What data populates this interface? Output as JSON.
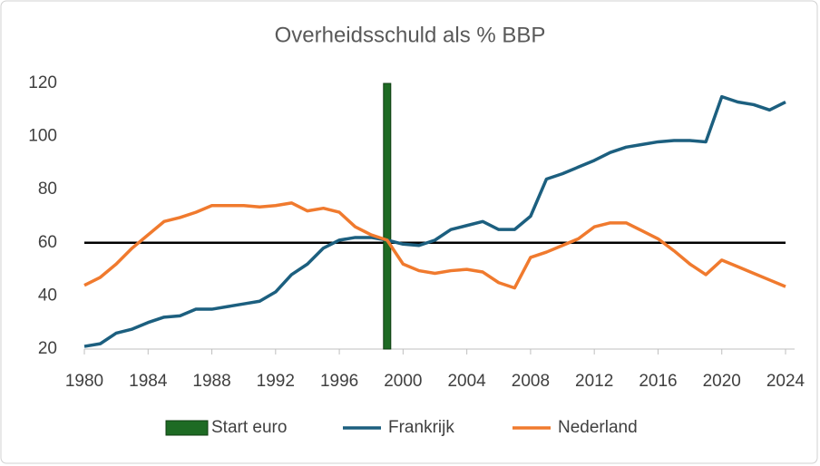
{
  "chart_data": {
    "type": "line",
    "title": "Overheidsschuld als % BBP",
    "x": [
      1980,
      1981,
      1982,
      1983,
      1984,
      1985,
      1986,
      1987,
      1988,
      1989,
      1990,
      1991,
      1992,
      1993,
      1994,
      1995,
      1996,
      1997,
      1998,
      1999,
      2000,
      2001,
      2002,
      2003,
      2004,
      2005,
      2006,
      2007,
      2008,
      2009,
      2010,
      2011,
      2012,
      2013,
      2014,
      2015,
      2016,
      2017,
      2018,
      2019,
      2020,
      2021,
      2022,
      2023,
      2024
    ],
    "series": [
      {
        "name": "Start euro",
        "type": "bar",
        "color": "#1e6b24",
        "x": [
          1999
        ],
        "values": [
          120
        ]
      },
      {
        "name": "Frankrijk",
        "type": "line",
        "color": "#1c5f7f",
        "values": [
          21,
          22,
          26,
          27.5,
          30,
          32,
          32.5,
          35,
          35,
          36,
          37,
          38,
          41.5,
          48,
          52,
          58,
          61,
          62,
          62,
          61,
          59.5,
          59,
          61,
          65,
          66.5,
          68,
          65,
          65,
          70,
          84,
          86,
          88.5,
          91,
          94,
          96,
          97,
          98,
          98.5,
          98.5,
          98,
          115,
          113,
          112,
          110,
          113
        ]
      },
      {
        "name": "Nederland",
        "type": "line",
        "color": "#f07a2e",
        "values": [
          44,
          47,
          52,
          58,
          63,
          68,
          69.5,
          71.5,
          74,
          74,
          74,
          73.5,
          74,
          75,
          72,
          73,
          71.5,
          66,
          63,
          61,
          52,
          49.5,
          48.5,
          49.5,
          50,
          49,
          45,
          43,
          54.5,
          56.5,
          59,
          61.5,
          66,
          67.5,
          67.5,
          64.5,
          61.5,
          57,
          52,
          48,
          53.5,
          51,
          48.5,
          46,
          43.5
        ]
      }
    ],
    "hline": 60,
    "hline_color": "#000000",
    "xlim": [
      1980,
      2024
    ],
    "xticks": [
      1980,
      1984,
      1988,
      1992,
      1996,
      2000,
      2004,
      2008,
      2012,
      2016,
      2020,
      2024
    ],
    "ylim": [
      20,
      120
    ],
    "yticks": [
      20,
      40,
      60,
      80,
      100,
      120
    ],
    "grid": false
  }
}
